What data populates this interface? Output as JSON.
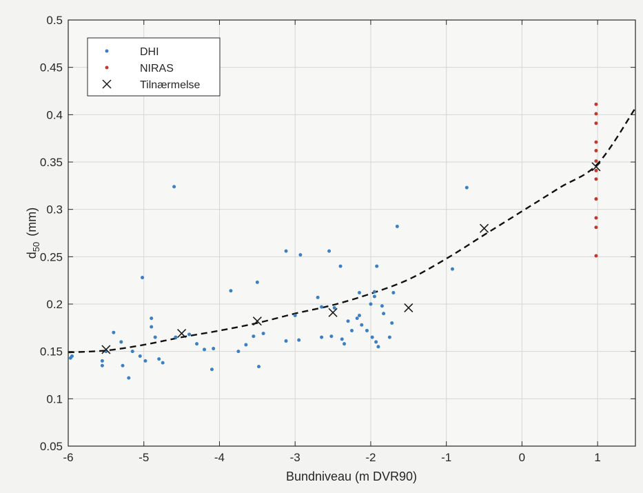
{
  "chart_data": {
    "type": "scatter",
    "xlabel": "Bundniveau (m DVR90)",
    "ylabel": "d50  (mm)",
    "ylabel_main": "d",
    "ylabel_sub": "50",
    "ylabel_unit": "(mm)",
    "xlim": [
      -6,
      1.5
    ],
    "ylim": [
      0.05,
      0.5
    ],
    "x_ticks": [
      -6,
      -5,
      -4,
      -3,
      -2,
      -1,
      0,
      1
    ],
    "x_tick_labels": [
      "-6",
      "-5",
      "-4",
      "-3",
      "-2",
      "-1",
      "0",
      "1"
    ],
    "y_ticks": [
      0.05,
      0.1,
      0.15,
      0.2,
      0.25,
      0.3,
      0.35,
      0.4,
      0.45,
      0.5
    ],
    "y_tick_labels": [
      "0.05",
      "0.1",
      "0.15",
      "0.2",
      "0.25",
      "0.3",
      "0.35",
      "0.4",
      "0.45",
      "0.5"
    ],
    "grid": true,
    "legend_position": "top-left",
    "series": [
      {
        "name": "DHI",
        "marker": "dot",
        "color": "#3b7fc4",
        "points": [
          [
            -5.97,
            0.143
          ],
          [
            -5.95,
            0.145
          ],
          [
            -5.55,
            0.135
          ],
          [
            -5.55,
            0.14
          ],
          [
            -5.5,
            0.15
          ],
          [
            -5.4,
            0.17
          ],
          [
            -5.3,
            0.16
          ],
          [
            -5.28,
            0.135
          ],
          [
            -5.2,
            0.122
          ],
          [
            -5.15,
            0.15
          ],
          [
            -5.05,
            0.145
          ],
          [
            -5.02,
            0.228
          ],
          [
            -4.98,
            0.14
          ],
          [
            -4.9,
            0.185
          ],
          [
            -4.9,
            0.176
          ],
          [
            -4.85,
            0.165
          ],
          [
            -4.8,
            0.142
          ],
          [
            -4.75,
            0.138
          ],
          [
            -4.6,
            0.324
          ],
          [
            -4.58,
            0.165
          ],
          [
            -4.4,
            0.168
          ],
          [
            -4.3,
            0.158
          ],
          [
            -4.2,
            0.152
          ],
          [
            -4.1,
            0.131
          ],
          [
            -4.08,
            0.153
          ],
          [
            -3.85,
            0.214
          ],
          [
            -3.75,
            0.15
          ],
          [
            -3.65,
            0.157
          ],
          [
            -3.55,
            0.166
          ],
          [
            -3.5,
            0.223
          ],
          [
            -3.48,
            0.134
          ],
          [
            -3.42,
            0.169
          ],
          [
            -3.12,
            0.256
          ],
          [
            -3.12,
            0.161
          ],
          [
            -3.0,
            0.188
          ],
          [
            -2.95,
            0.162
          ],
          [
            -2.93,
            0.252
          ],
          [
            -2.7,
            0.207
          ],
          [
            -2.65,
            0.197
          ],
          [
            -2.65,
            0.165
          ],
          [
            -2.55,
            0.256
          ],
          [
            -2.52,
            0.166
          ],
          [
            -2.48,
            0.196
          ],
          [
            -2.4,
            0.24
          ],
          [
            -2.38,
            0.163
          ],
          [
            -2.35,
            0.158
          ],
          [
            -2.3,
            0.182
          ],
          [
            -2.25,
            0.172
          ],
          [
            -2.18,
            0.185
          ],
          [
            -2.15,
            0.212
          ],
          [
            -2.15,
            0.188
          ],
          [
            -2.12,
            0.178
          ],
          [
            -2.05,
            0.172
          ],
          [
            -2.0,
            0.2
          ],
          [
            -1.98,
            0.165
          ],
          [
            -1.95,
            0.213
          ],
          [
            -1.95,
            0.208
          ],
          [
            -1.93,
            0.16
          ],
          [
            -1.92,
            0.24
          ],
          [
            -1.9,
            0.155
          ],
          [
            -1.85,
            0.198
          ],
          [
            -1.83,
            0.19
          ],
          [
            -1.75,
            0.165
          ],
          [
            -1.72,
            0.18
          ],
          [
            -1.7,
            0.212
          ],
          [
            -1.65,
            0.282
          ],
          [
            -0.92,
            0.237
          ],
          [
            -0.73,
            0.323
          ]
        ]
      },
      {
        "name": "NIRAS",
        "marker": "dot",
        "color": "#c0392b",
        "points": [
          [
            0.98,
            0.251
          ],
          [
            0.98,
            0.281
          ],
          [
            0.98,
            0.291
          ],
          [
            0.98,
            0.311
          ],
          [
            0.98,
            0.332
          ],
          [
            0.98,
            0.341
          ],
          [
            0.98,
            0.351
          ],
          [
            0.98,
            0.362
          ],
          [
            0.98,
            0.371
          ],
          [
            0.98,
            0.391
          ],
          [
            0.98,
            0.401
          ],
          [
            0.98,
            0.411
          ]
        ]
      },
      {
        "name": "Tilnærmelse",
        "marker": "x",
        "color": "#1a1a1a",
        "points": [
          [
            -5.5,
            0.152
          ],
          [
            -4.5,
            0.169
          ],
          [
            -3.5,
            0.182
          ],
          [
            -2.5,
            0.191
          ],
          [
            -1.5,
            0.196
          ],
          [
            -0.5,
            0.28
          ],
          [
            0.98,
            0.345
          ]
        ]
      }
    ],
    "fit_curve": {
      "style": "dashed",
      "color": "#111111",
      "points": [
        [
          -6.0,
          0.149
        ],
        [
          -5.5,
          0.151
        ],
        [
          -5.0,
          0.157
        ],
        [
          -4.5,
          0.165
        ],
        [
          -4.0,
          0.172
        ],
        [
          -3.5,
          0.18
        ],
        [
          -3.0,
          0.19
        ],
        [
          -2.5,
          0.199
        ],
        [
          -2.0,
          0.211
        ],
        [
          -1.5,
          0.226
        ],
        [
          -1.0,
          0.248
        ],
        [
          -0.5,
          0.273
        ],
        [
          0.0,
          0.298
        ],
        [
          0.5,
          0.323
        ],
        [
          1.0,
          0.348
        ],
        [
          1.5,
          0.407
        ]
      ]
    }
  }
}
